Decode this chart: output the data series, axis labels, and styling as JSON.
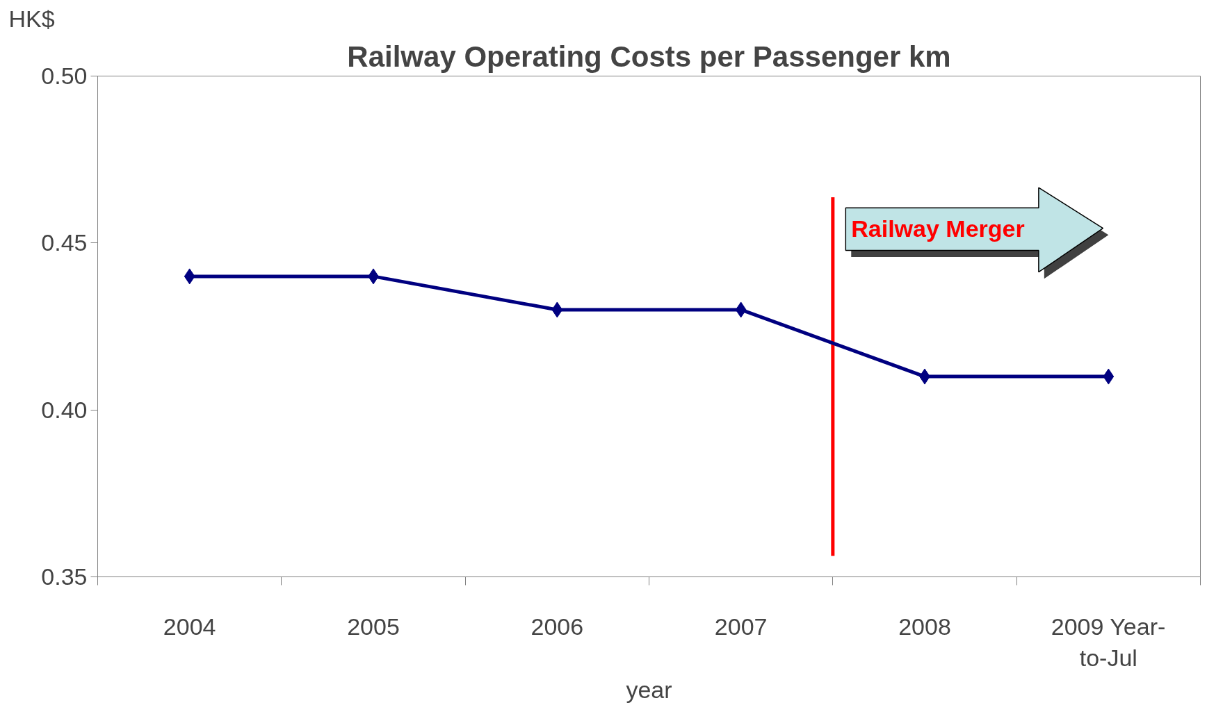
{
  "chart_data": {
    "type": "line",
    "title": "Railway Operating Costs per Passenger km",
    "ylabel": "HK$",
    "xlabel": "year",
    "categories": [
      "2004",
      "2005",
      "2006",
      "2007",
      "2008",
      "2009 Year-to-Jul"
    ],
    "series": [
      {
        "color": "#000080",
        "values": [
          0.44,
          0.44,
          0.43,
          0.43,
          0.41,
          0.41
        ]
      }
    ],
    "ylim": [
      0.35,
      0.5
    ],
    "yticks": [
      {
        "value": 0.35,
        "label": "0.35"
      },
      {
        "value": 0.4,
        "label": "0.40"
      },
      {
        "value": 0.45,
        "label": "0.45"
      },
      {
        "value": 0.5,
        "label": "0.50"
      }
    ],
    "marker": "diamond",
    "grid": false,
    "annotations": [
      "Railway Merger"
    ]
  }
}
